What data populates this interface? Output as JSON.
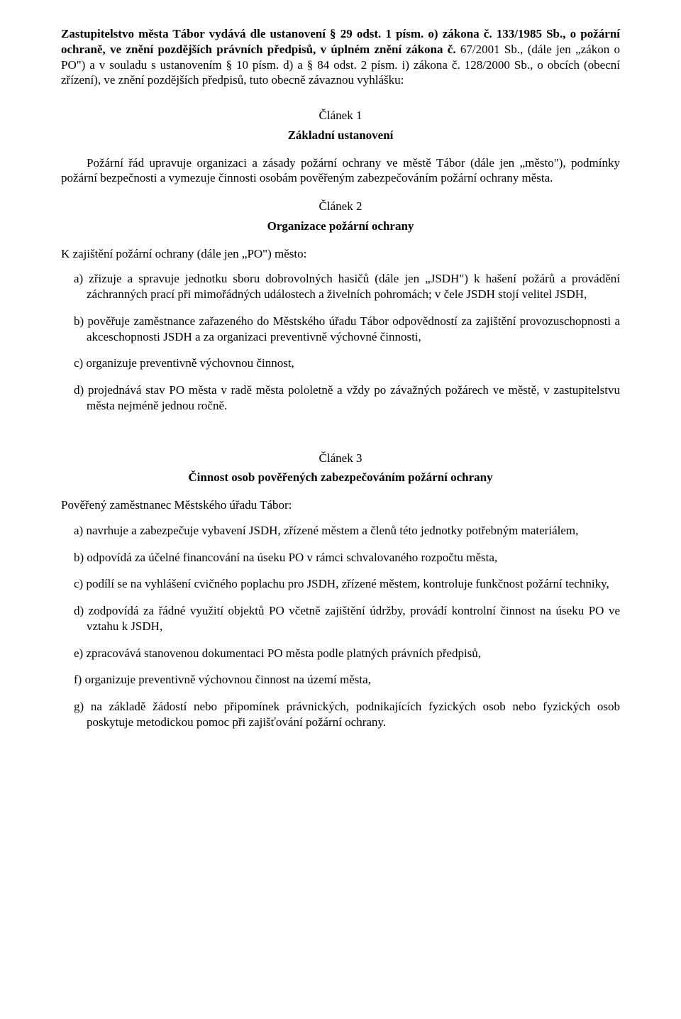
{
  "preamble": {
    "bold_intro": "Zastupitelstvo města Tábor vydává dle ustanovení § 29 odst. 1 písm. o) zákona č. 133/1985 Sb., o požární ochraně, ve znění pozdějších právních předpisů, v úplném znění zákona č.",
    "plain_tail": " 67/2001 Sb., (dále jen „zákon o PO\") a v souladu s ustanovením § 10 písm. d) a § 84 odst. 2 písm. i) zákona č. 128/2000 Sb., o obcích (obecní zřízení), ve znění pozdějších předpisů, tuto obecně závaznou vyhlášku:"
  },
  "articles": {
    "a1": {
      "label": "Článek 1",
      "title": "Základní ustanovení",
      "para": "Požární řád upravuje organizaci a zásady požární ochrany ve městě Tábor (dále jen „město\"), podmínky požární bezpečnosti a vymezuje činnosti osobám pověřeným zabezpečováním požární ochrany města."
    },
    "a2": {
      "label": "Článek 2",
      "title": "Organizace požární ochrany",
      "leadin": "K zajištění požární ochrany (dále jen „PO\") město:",
      "items": {
        "a": "a) zřizuje a spravuje jednotku sboru dobrovolných hasičů (dále jen „JSDH\") k hašení požárů a provádění záchranných prací při mimořádných událostech a živelních pohromách; v čele JSDH stojí velitel JSDH,",
        "b": "b) pověřuje zaměstnance zařazeného do Městského úřadu Tábor odpovědností za zajištění provozuschopnosti a akceschopnosti JSDH a za organizaci preventivně výchovné činnosti,",
        "c": "c) organizuje preventivně výchovnou činnost,",
        "d": "d) projednává stav PO města v radě města pololetně a vždy po závažných požárech ve městě, v zastupitelstvu města nejméně jednou ročně."
      }
    },
    "a3": {
      "label": "Článek 3",
      "title": "Činnost osob pověřených zabezpečováním požární ochrany",
      "leadin": "Pověřený zaměstnanec Městského úřadu Tábor:",
      "items": {
        "a": "a) navrhuje a zabezpečuje vybavení JSDH, zřízené městem a členů této jednotky potřebným materiálem,",
        "b": "b) odpovídá za účelné financování na úseku PO v rámci schvalovaného rozpočtu města,",
        "c": "c) podílí se na vyhlášení cvičného poplachu pro JSDH, zřízené městem, kontroluje funkčnost požární techniky,",
        "d": "d) zodpovídá za řádné využití objektů PO včetně zajištění údržby, provádí kontrolní činnost na úseku PO ve vztahu k JSDH,",
        "e": "e) zpracovává stanovenou dokumentaci PO města podle platných právních předpisů,",
        "f": "f) organizuje preventivně výchovnou činnost na území města,",
        "g": "g) na základě žádostí nebo připomínek právnických, podnikajících fyzických osob nebo fyzických osob poskytuje metodickou pomoc při zajišťování požární ochrany."
      }
    }
  }
}
